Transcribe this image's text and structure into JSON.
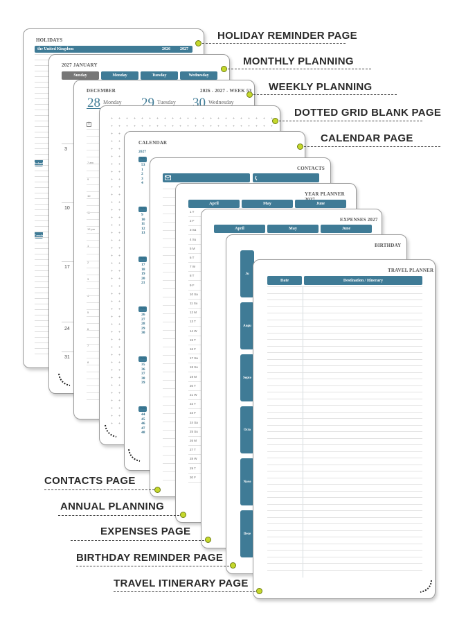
{
  "callouts": [
    {
      "label": "HOLIDAY REMINDER PAGE"
    },
    {
      "label": "MONTHLY PLANNING"
    },
    {
      "label": "WEEKLY PLANNING"
    },
    {
      "label": "DOTTED GRID BLANK PAGE"
    },
    {
      "label": "CALENDAR PAGE"
    },
    {
      "label": "CONTACTS PAGE"
    },
    {
      "label": "ANNUAL PLANNING"
    },
    {
      "label": "EXPENSES PAGE"
    },
    {
      "label": "BIRTHDAY REMINDER PAGE"
    },
    {
      "label": "TRAVEL ITINERARY PAGE"
    }
  ],
  "holidays": {
    "title": "HOLIDAYS",
    "country1": "the United Kingdom",
    "year1": "2026",
    "year2": "2027",
    "country2": "Ireland",
    "country3": "Canada"
  },
  "monthly": {
    "title": "2027 JANUARY",
    "days": [
      "Sunday",
      "Monday",
      "Tuesday",
      "Wednesday"
    ],
    "dates": [
      "3",
      "10",
      "17",
      "24",
      "31"
    ]
  },
  "weekly": {
    "title": "DECEMBER",
    "week": "2026 - 2027 - WEEK 53",
    "d1": "28",
    "d1name": "Monday",
    "d2": "29",
    "d2name": "Tuesday",
    "d3": "30",
    "d3name": "Wednesday",
    "times": [
      "7 am",
      "9",
      "10",
      "11",
      "12 pm",
      "1",
      "2",
      "3",
      "4",
      "5",
      "6",
      "7",
      "8"
    ]
  },
  "calendar": {
    "title": "CALENDAR",
    "year": "2027",
    "wk": "WK",
    "groups": [
      [
        "53",
        "1",
        "2",
        "3",
        "4"
      ],
      [
        "9",
        "10",
        "11",
        "12",
        "13"
      ],
      [
        "17",
        "18",
        "19",
        "20",
        "21"
      ],
      [
        "26",
        "27",
        "28",
        "29",
        "30"
      ],
      [
        "35",
        "36",
        "37",
        "38",
        "39"
      ],
      [
        "44",
        "45",
        "46",
        "47",
        "48"
      ]
    ]
  },
  "contacts": {
    "title": "CONTACTS"
  },
  "year_planner": {
    "title": "YEAR PLANNER 2027",
    "months": [
      "April",
      "May",
      "June"
    ],
    "rows": [
      "1 T",
      "2 F",
      "3 Sa",
      "4 Su",
      "5 M",
      "6 T",
      "7 W",
      "8 T",
      "9 F",
      "10 Sa",
      "11 Su",
      "12 M",
      "13 T",
      "14 W",
      "15 T",
      "16 F",
      "17 Sa",
      "18 Su",
      "19 M",
      "20 T",
      "21 W",
      "22 T",
      "23 F",
      "24 Sa",
      "25 Su",
      "26 M",
      "27 T",
      "28 W",
      "29 T",
      "30 F"
    ]
  },
  "expenses": {
    "title": "EXPENSES 2027",
    "months": [
      "April",
      "May",
      "June"
    ]
  },
  "birthday": {
    "title": "BIRTHDAY",
    "tabs": [
      "Ju",
      "Augu",
      "Septe",
      "Octo",
      "Nove",
      "Dece"
    ]
  },
  "travel": {
    "title": "TRAVEL PLANNER",
    "col1": "Date",
    "col2": "Destination / Itinerary"
  },
  "colors": {
    "accent": "#3f7b96",
    "dot": "#c5d82c"
  }
}
